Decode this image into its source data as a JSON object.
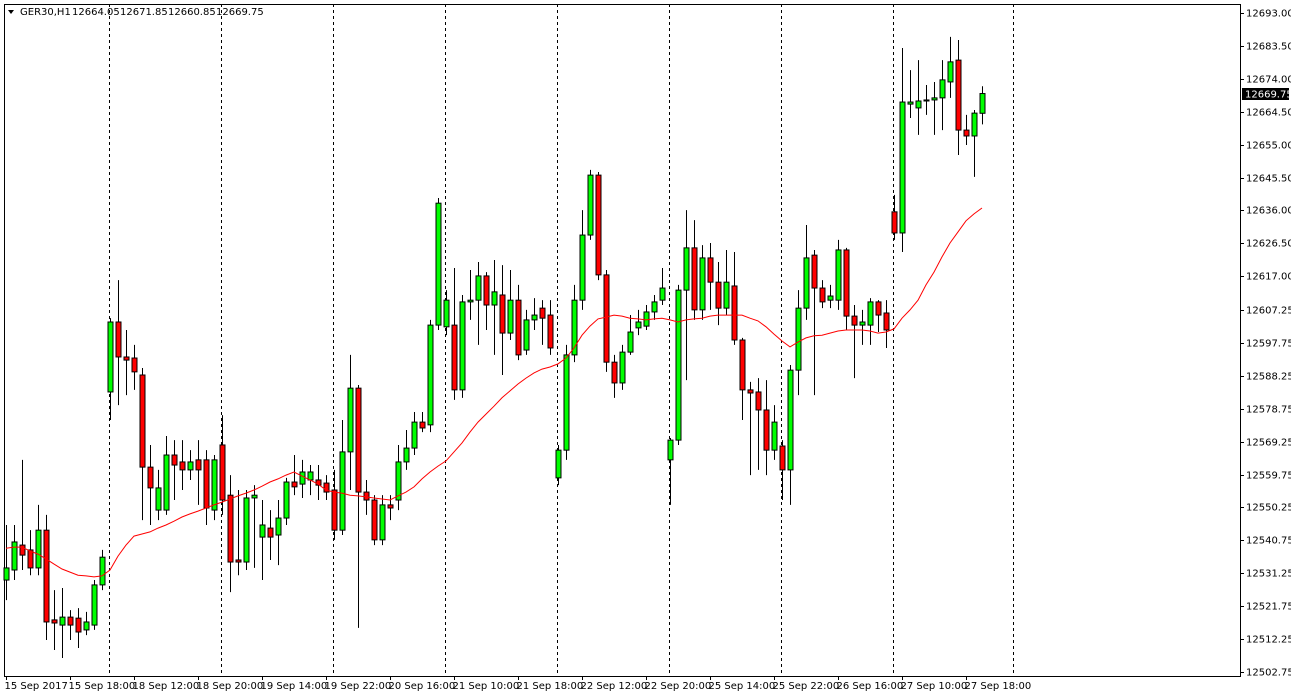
{
  "chart_data": {
    "type": "candlestick",
    "title": "GER30,H1",
    "header_values": [
      12664.05,
      12671.85,
      12660.85,
      12669.75
    ],
    "last_price": 12669.75,
    "up_color": "#00ff00",
    "down_color": "#ff0000",
    "categories": [
      "15 Sep 2017",
      null,
      null,
      null,
      null,
      null,
      null,
      null,
      "15 Sep 18:00",
      null,
      null,
      null,
      null,
      null,
      null,
      null,
      "18 Sep 12:00",
      null,
      null,
      null,
      null,
      null,
      null,
      null,
      "18 Sep 20:00",
      null,
      null,
      null,
      null,
      null,
      null,
      null,
      "19 Sep 14:00",
      null,
      null,
      null,
      null,
      null,
      null,
      null,
      "19 Sep 22:00",
      null,
      null,
      null,
      null,
      null,
      null,
      null,
      "20 Sep 16:00",
      null,
      null,
      null,
      null,
      null,
      null,
      null,
      "21 Sep 10:00",
      null,
      null,
      null,
      null,
      null,
      null,
      null,
      "21 Sep 18:00",
      null,
      null,
      null,
      null,
      null,
      null,
      null,
      "22 Sep 12:00",
      null,
      null,
      null,
      null,
      null,
      null,
      null,
      "22 Sep 20:00",
      null,
      null,
      null,
      null,
      null,
      null,
      null,
      "25 Sep 14:00",
      null,
      null,
      null,
      null,
      null,
      null,
      null,
      "25 Sep 22:00",
      null,
      null,
      null,
      null,
      null,
      null,
      null,
      "26 Sep 16:00",
      null,
      null,
      null,
      null,
      null,
      null,
      null,
      "27 Sep 10:00",
      null,
      null,
      null,
      null,
      null,
      null,
      null,
      "27 Sep 18:00",
      null,
      null
    ],
    "open": [
      12529.3,
      12532.2,
      12539.4,
      12538.0,
      12532.8,
      12543.7,
      12517.8,
      12516.3,
      12518.6,
      12518.3,
      12514.9,
      12516.3,
      12527.9,
      12583.6,
      12603.8,
      12593.7,
      12593.4,
      12588.5,
      12561.9,
      12549.5,
      12549.5,
      12565.4,
      12563.4,
      12561.1,
      12564.0,
      12564.0,
      12549.5,
      12568.3,
      12553.8,
      12535.1,
      12534.5,
      12553.0,
      12541.7,
      12544.3,
      12542.3,
      12547.2,
      12557.6,
      12557.0,
      12558.2,
      12558.2,
      12557.3,
      12555.3,
      12543.7,
      12566.3,
      12584.7,
      12554.7,
      12552.4,
      12540.9,
      12551.0,
      12552.4,
      12563.4,
      12567.4,
      12574.9,
      12574.1,
      12602.9,
      12602.4,
      12602.9,
      12584.2,
      12609.6,
      12610.1,
      12617.1,
      12608.7,
      12611.6,
      12600.6,
      12610.1,
      12595.7,
      12604.4,
      12607.8,
      12605.8,
      12558.8,
      12566.8,
      12594.3,
      12610.1,
      12628.9,
      12646.2,
      12617.4,
      12592.2,
      12586.2,
      12595.1,
      12602.1,
      12602.6,
      12606.7,
      12610.1,
      12564.0,
      12569.7,
      12613.0,
      12625.2,
      12607.3,
      12622.3,
      12615.3,
      12607.8,
      12614.2,
      12598.6,
      12584.2,
      12583.6,
      12578.4,
      12566.8,
      12568.0,
      12561.1,
      12589.9,
      12607.8,
      12623.1,
      12613.6,
      12610.1,
      12610.1,
      12624.6,
      12605.5,
      12602.9,
      12602.9,
      12609.6,
      12606.4,
      12635.6,
      12629.5,
      12666.7,
      12665.6,
      12667.6,
      12667.9,
      12668.5,
      12673.1,
      12679.4,
      12659.2,
      12657.5,
      12664.05
    ],
    "high": [
      12545.2,
      12545.2,
      12564.0,
      12543.7,
      12551.0,
      12548.1,
      12526.4,
      12527.0,
      12520.6,
      12521.2,
      12520.1,
      12529.3,
      12538.0,
      12604.9,
      12615.9,
      12601.5,
      12597.2,
      12590.5,
      12568.3,
      12561.1,
      12570.9,
      12569.7,
      12569.7,
      12566.8,
      12569.7,
      12566.8,
      12565.4,
      12576.9,
      12559.6,
      12555.3,
      12555.3,
      12556.7,
      12552.4,
      12549.5,
      12552.4,
      12558.8,
      12565.4,
      12564.0,
      12562.5,
      12562.5,
      12559.6,
      12561.1,
      12575.5,
      12594.3,
      12585.6,
      12558.2,
      12553.8,
      12553.8,
      12553.8,
      12568.3,
      12572.6,
      12577.8,
      12577.8,
      12604.4,
      12639.6,
      12613.0,
      12619.4,
      12611.6,
      12618.8,
      12621.1,
      12618.2,
      12621.7,
      12620.2,
      12618.8,
      12614.5,
      12607.3,
      12610.7,
      12610.1,
      12610.1,
      12568.3,
      12597.2,
      12614.5,
      12636.1,
      12647.7,
      12647.1,
      12618.8,
      12594.3,
      12597.2,
      12605.8,
      12607.3,
      12608.7,
      12611.6,
      12619.4,
      12570.3,
      12614.5,
      12636.1,
      12633.2,
      12626.0,
      12626.6,
      12621.1,
      12624.6,
      12624.0,
      12599.2,
      12586.5,
      12587.6,
      12587.0,
      12579.8,
      12569.7,
      12591.4,
      12613.0,
      12631.8,
      12624.6,
      12615.9,
      12614.5,
      12627.5,
      12625.2,
      12608.7,
      12607.3,
      12610.7,
      12610.1,
      12610.1,
      12640.5,
      12682.9,
      12676.5,
      12679.4,
      12672.2,
      12673.1,
      12679.4,
      12686.1,
      12685.2,
      12663.6,
      12665.0,
      12671.85
    ],
    "low": [
      12523.5,
      12529.3,
      12532.2,
      12530.7,
      12530.7,
      12512.0,
      12509.1,
      12506.8,
      12512.0,
      12509.7,
      12513.4,
      12514.9,
      12526.4,
      12575.5,
      12579.8,
      12582.7,
      12584.2,
      12546.6,
      12545.2,
      12546.6,
      12548.1,
      12552.4,
      12555.3,
      12558.2,
      12551.0,
      12545.2,
      12546.6,
      12548.1,
      12525.8,
      12530.7,
      12532.2,
      12532.8,
      12529.3,
      12535.1,
      12533.6,
      12545.2,
      12553.8,
      12553.0,
      12553.8,
      12552.4,
      12552.4,
      12540.9,
      12542.3,
      12555.3,
      12515.5,
      12548.1,
      12539.4,
      12539.4,
      12546.6,
      12549.5,
      12561.1,
      12565.4,
      12572.0,
      12572.0,
      12601.5,
      12600.0,
      12581.3,
      12581.9,
      12604.4,
      12597.2,
      12601.5,
      12594.3,
      12588.5,
      12598.6,
      12592.8,
      12594.3,
      12601.5,
      12597.2,
      12594.3,
      12556.7,
      12564.0,
      12592.2,
      12607.3,
      12627.5,
      12615.9,
      12589.4,
      12581.9,
      12584.2,
      12594.3,
      12600.0,
      12601.5,
      12604.4,
      12608.7,
      12551.0,
      12568.3,
      12587.0,
      12604.4,
      12604.4,
      12607.3,
      12602.9,
      12605.8,
      12597.2,
      12575.5,
      12559.6,
      12561.1,
      12559.6,
      12564.0,
      12552.4,
      12551.0,
      12582.7,
      12604.4,
      12582.7,
      12607.8,
      12607.8,
      12607.3,
      12601.5,
      12587.6,
      12597.2,
      12597.2,
      12600.9,
      12596.3,
      12627.5,
      12624.0,
      12662.7,
      12657.8,
      12663.6,
      12657.8,
      12659.2,
      12668.5,
      12652.0,
      12654.9,
      12645.7,
      12660.85
    ],
    "close": [
      12532.8,
      12540.3,
      12536.5,
      12532.8,
      12543.7,
      12517.2,
      12516.9,
      12518.6,
      12516.3,
      12514.3,
      12517.2,
      12527.9,
      12535.9,
      12603.8,
      12593.7,
      12592.8,
      12589.4,
      12561.9,
      12555.9,
      12555.9,
      12565.4,
      12562.5,
      12561.1,
      12563.4,
      12561.1,
      12550.1,
      12564.0,
      12552.4,
      12534.5,
      12534.5,
      12553.0,
      12553.8,
      12545.2,
      12541.7,
      12547.2,
      12557.6,
      12556.2,
      12560.5,
      12560.5,
      12556.7,
      12554.7,
      12543.7,
      12566.3,
      12584.7,
      12554.7,
      12552.4,
      12540.9,
      12551.0,
      12550.1,
      12563.4,
      12567.4,
      12574.9,
      12573.2,
      12602.9,
      12638.1,
      12610.1,
      12584.2,
      12609.6,
      12610.1,
      12617.1,
      12608.7,
      12612.5,
      12600.6,
      12610.1,
      12594.3,
      12604.4,
      12605.8,
      12604.9,
      12596.3,
      12566.8,
      12594.3,
      12610.1,
      12628.9,
      12646.2,
      12617.4,
      12592.2,
      12586.2,
      12595.1,
      12600.9,
      12603.8,
      12606.7,
      12609.6,
      12613.6,
      12569.7,
      12613.0,
      12625.2,
      12607.3,
      12622.3,
      12615.3,
      12607.8,
      12615.3,
      12598.6,
      12584.2,
      12583.3,
      12578.4,
      12566.8,
      12574.9,
      12561.1,
      12589.9,
      12607.8,
      12622.3,
      12613.6,
      12609.6,
      12611.3,
      12624.6,
      12605.5,
      12602.9,
      12603.8,
      12609.6,
      12605.8,
      12601.5,
      12629.5,
      12667.3,
      12667.3,
      12667.6,
      12667.9,
      12668.5,
      12673.7,
      12678.9,
      12659.2,
      12657.5,
      12664.1,
      12669.75
    ],
    "ma": {
      "color": "#ff0000",
      "values": [
        12538.5,
        12538.8,
        12538.8,
        12537.7,
        12536.8,
        12535.4,
        12533.9,
        12532.5,
        12531.6,
        12530.7,
        12530.5,
        12530.2,
        12530.5,
        12532.2,
        12536.2,
        12539.4,
        12542.0,
        12542.6,
        12543.2,
        12544.3,
        12545.2,
        12546.3,
        12547.5,
        12548.4,
        12549.2,
        12550.1,
        12551.0,
        12551.8,
        12552.7,
        12553.6,
        12554.4,
        12555.3,
        12556.4,
        12557.6,
        12558.5,
        12559.6,
        12560.5,
        12559.3,
        12558.2,
        12557.0,
        12555.3,
        12554.7,
        12554.4,
        12553.8,
        12553.6,
        12553.3,
        12553.0,
        12552.7,
        12552.4,
        12553.6,
        12554.7,
        12556.2,
        12558.5,
        12560.5,
        12562.2,
        12563.7,
        12566.3,
        12568.9,
        12572.0,
        12574.9,
        12577.2,
        12579.5,
        12581.9,
        12583.9,
        12585.9,
        12587.6,
        12589.1,
        12590.2,
        12590.8,
        12591.7,
        12593.4,
        12596.3,
        12600.0,
        12602.6,
        12604.7,
        12605.2,
        12605.8,
        12605.5,
        12604.9,
        12604.7,
        12604.4,
        12604.7,
        12604.9,
        12604.4,
        12603.8,
        12604.4,
        12604.7,
        12604.9,
        12605.5,
        12605.8,
        12605.8,
        12605.8,
        12605.8,
        12604.9,
        12604.1,
        12602.4,
        12600.3,
        12598.3,
        12596.6,
        12598.0,
        12599.2,
        12599.8,
        12600.0,
        12600.6,
        12601.2,
        12601.5,
        12601.5,
        12601.5,
        12601.2,
        12600.6,
        12600.9,
        12601.8,
        12604.9,
        12607.3,
        12610.1,
        12614.5,
        12618.2,
        12622.6,
        12626.6,
        12629.8,
        12633.0,
        12635.0,
        12636.7
      ]
    },
    "ylim": [
      12501.6,
      12695.6
    ],
    "yticks": [
      12502.75,
      12512.25,
      12521.75,
      12531.25,
      12540.75,
      12550.25,
      12559.75,
      12569.25,
      12578.75,
      12588.25,
      12597.75,
      12607.25,
      {
        "value": 12617,
        "label": "12617.00"
      },
      {
        "value": 12626.5,
        "label": "12626.50"
      },
      {
        "value": 12636,
        "label": "12636.00"
      },
      {
        "value": 12645.5,
        "label": "12645.50"
      },
      {
        "value": 12655,
        "label": "12655.00"
      },
      {
        "value": 12664.5,
        "label": "12664.50"
      },
      {
        "value": 12674,
        "label": "12674.00"
      },
      {
        "value": 12683.5,
        "label": "12683.50"
      },
      {
        "value": 12693,
        "label": "12693.00"
      }
    ]
  }
}
